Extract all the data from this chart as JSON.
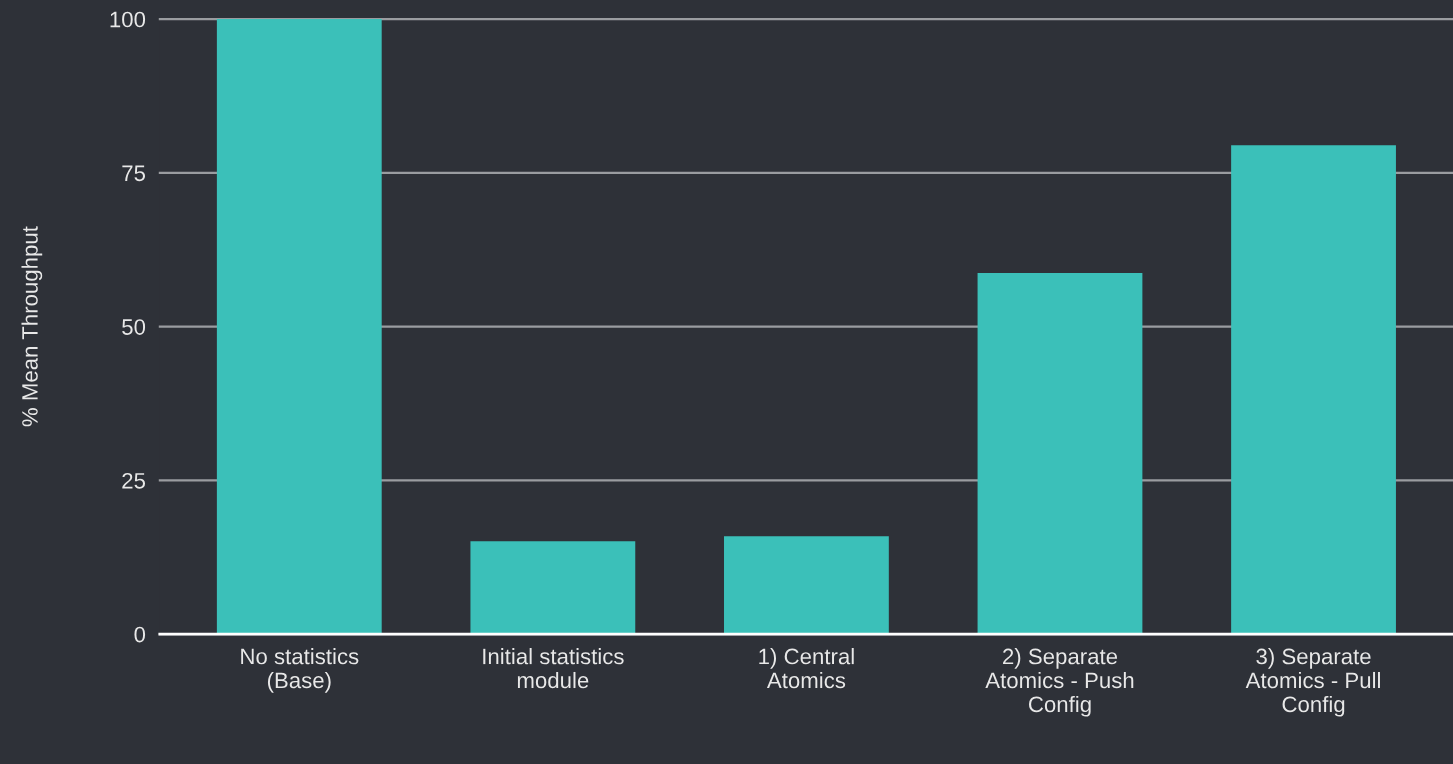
{
  "chart_data": {
    "type": "bar",
    "ylabel": "% Mean Throughput",
    "categories": [
      "No statistics\n(Base)",
      "Initial statistics\nmodule",
      "1) Central\nAtomics",
      "2) Separate\nAtomics - Push\nConfig",
      "3) Separate\nAtomics - Pull\nConfig"
    ],
    "values": [
      100,
      15.1,
      15.9,
      58.7,
      79.5
    ],
    "color": "#3bc0b9",
    "ylim": [
      0,
      100
    ],
    "yticks": [
      0,
      25,
      50,
      75,
      100
    ],
    "grid": "y"
  }
}
